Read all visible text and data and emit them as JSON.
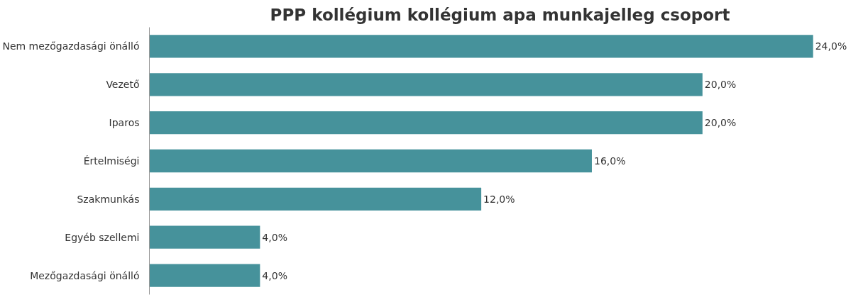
{
  "chart_data": {
    "type": "bar",
    "orientation": "horizontal",
    "title": "PPP  kollégium kollégium apa munkajelleg csoport",
    "categories": [
      "Nem mezőgazdasági önálló",
      "Vezető",
      "Iparos",
      "Értelmiségi",
      "Szakmunkás",
      "Egyéb szellemi",
      "Mezőgazdasági önálló"
    ],
    "values": [
      24,
      20,
      20,
      16,
      12,
      4,
      4
    ],
    "value_labels": [
      "24,0%",
      "20,0%",
      "20,0%",
      "16,0%",
      "12,0%",
      "4,0%",
      "4,0%"
    ],
    "color": "#46929b",
    "grid": false,
    "tick_labels": "y"
  }
}
